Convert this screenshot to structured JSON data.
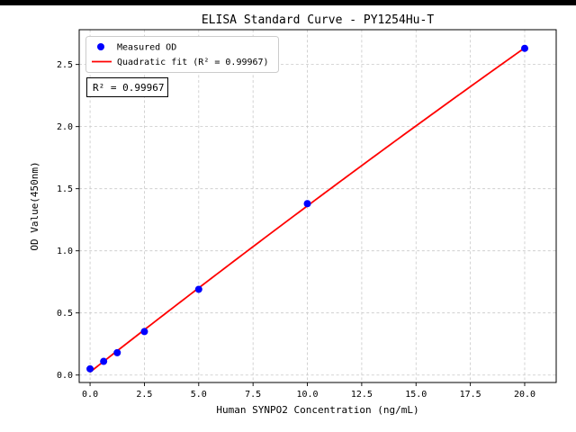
{
  "chart_data": {
    "type": "scatter",
    "title": "ELISA Standard Curve - PY1254Hu-T",
    "xlabel": "Human SYNPO2 Concentration (ng/mL)",
    "ylabel": "OD Value(450nm)",
    "xlim": [
      -0.5,
      21.45
    ],
    "ylim": [
      -0.06,
      2.78
    ],
    "xticks": [
      0,
      2.5,
      5,
      7.5,
      10,
      12.5,
      15,
      17.5,
      20
    ],
    "yticks": [
      0,
      0.5,
      1,
      1.5,
      2,
      2.5
    ],
    "grid": true,
    "legend_position": "upper left",
    "annotation": "R² = 0.99967",
    "colors": {
      "scatter": "#0000ff",
      "fit_line": "#ff0000",
      "grid": "#c8c8c8",
      "legend_frame": "#cccccc"
    },
    "series": [
      {
        "name": "Measured OD",
        "type": "scatter",
        "color": "#0000ff",
        "x": [
          0,
          0.625,
          1.25,
          2.5,
          5,
          10,
          20
        ],
        "y": [
          0.05,
          0.11,
          0.18,
          0.35,
          0.69,
          1.38,
          2.63
        ]
      },
      {
        "name": "Quadratic fit (R² = 0.99967)",
        "type": "line",
        "color": "#ff0000",
        "x_range": [
          0,
          20
        ],
        "fit_coefficients": {
          "c0": 0.0241,
          "c1": 0.13705,
          "c2": -0.000329
        },
        "r_squared": 0.99967
      }
    ]
  }
}
